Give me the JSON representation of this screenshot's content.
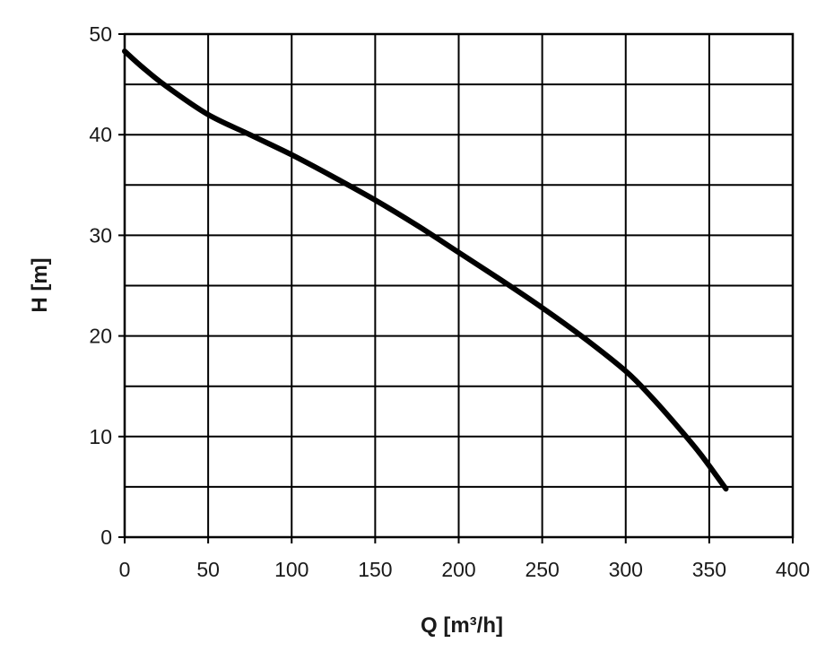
{
  "chart_data": {
    "type": "line",
    "title": "",
    "xlabel": "Q [m³/h]",
    "ylabel": "H [m]",
    "xlim": [
      0,
      400
    ],
    "ylim": [
      0,
      50
    ],
    "x_ticks": [
      0,
      50,
      100,
      150,
      200,
      250,
      300,
      350,
      400
    ],
    "y_ticks": [
      0,
      10,
      20,
      30,
      40,
      50
    ],
    "x_tick_labels": [
      "0",
      "50",
      "100",
      "150",
      "200",
      "250",
      "300",
      "350",
      "400"
    ],
    "y_tick_labels": [
      "0",
      "10",
      "20",
      "30",
      "40",
      "50"
    ],
    "grid": true,
    "grid_minor_y": [
      5,
      15,
      25,
      35,
      45
    ],
    "legend": "none",
    "series": [
      {
        "color": "#000000",
        "x": [
          0,
          10,
          25,
          50,
          75,
          100,
          125,
          150,
          175,
          200,
          225,
          250,
          275,
          300,
          315,
          330,
          345,
          360
        ],
        "y": [
          48.3,
          46.8,
          44.8,
          42.0,
          40.0,
          38.0,
          35.8,
          33.5,
          31.0,
          28.3,
          25.6,
          22.8,
          19.8,
          16.5,
          14.0,
          11.2,
          8.2,
          4.8
        ]
      }
    ]
  }
}
